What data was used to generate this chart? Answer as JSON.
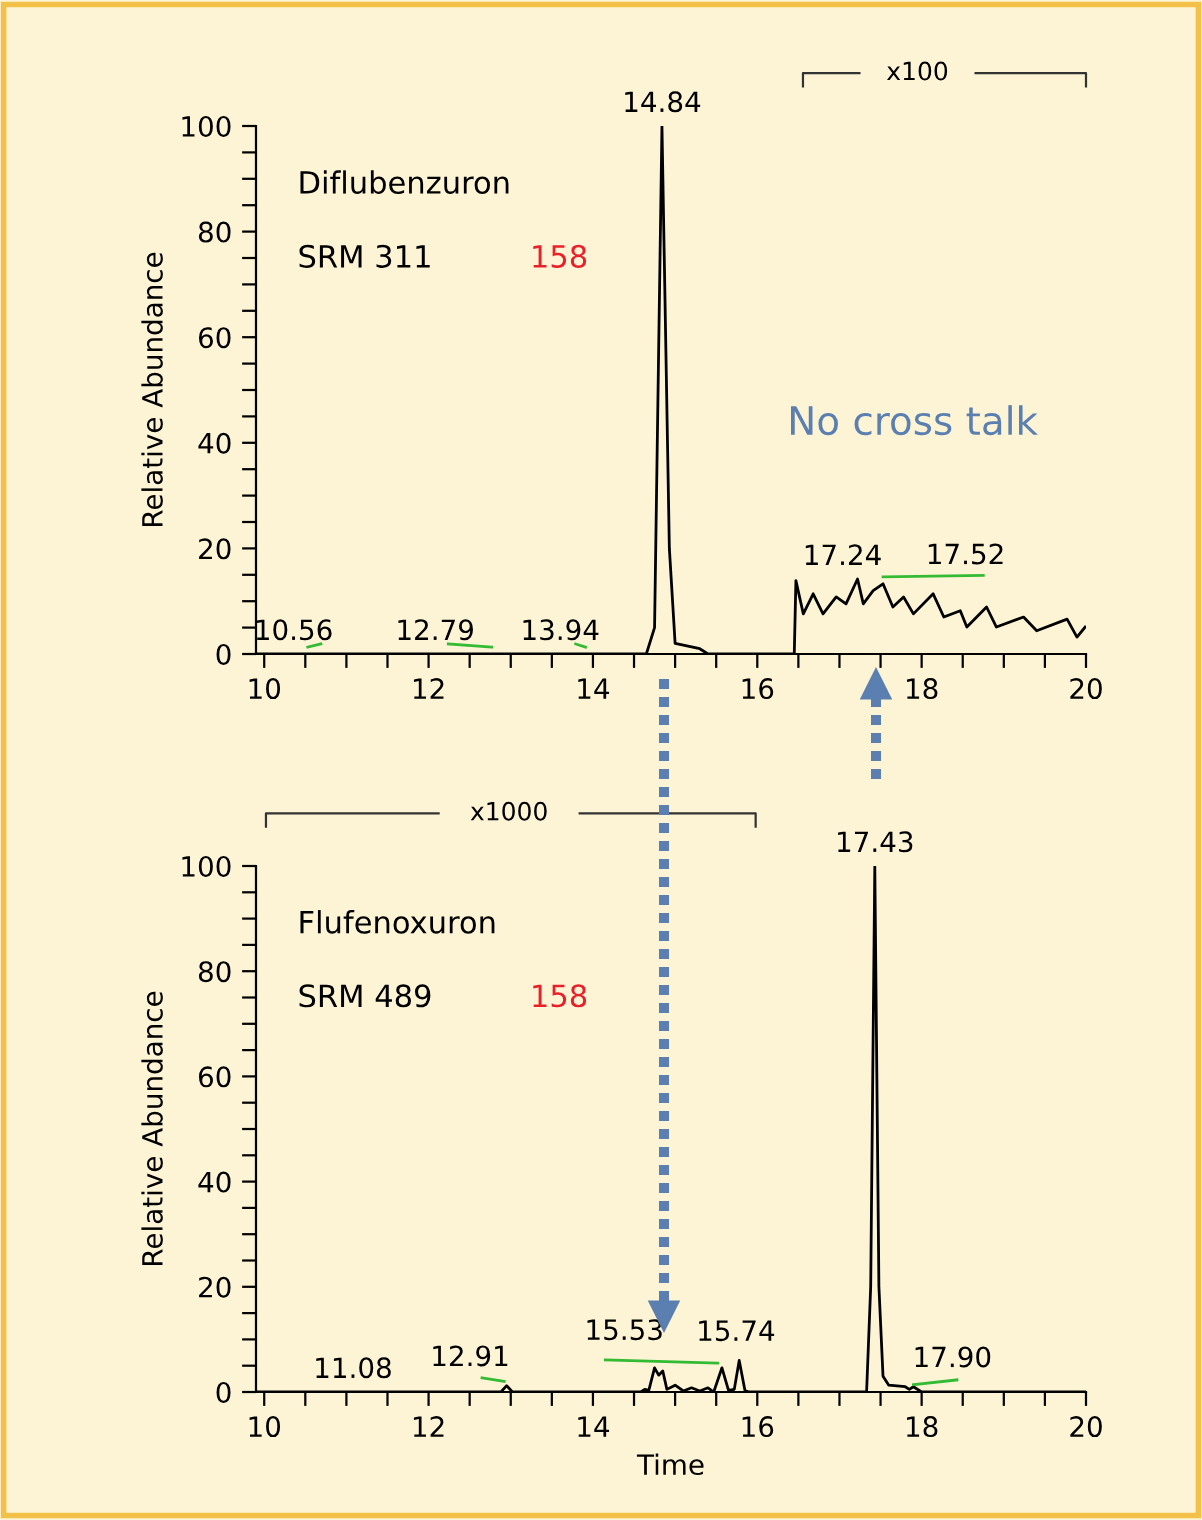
{
  "chart_data": [
    {
      "type": "line",
      "xlabel": null,
      "ylabel": "Relative Abundance",
      "xlim": [
        9.9,
        20
      ],
      "ylim": [
        0,
        100
      ],
      "xticks": [
        10,
        {
          "value": 10.5,
          "label": null
        },
        {
          "value": 11,
          "label": null
        },
        {
          "value": 11.5,
          "label": null
        },
        12,
        {
          "value": 12.5,
          "label": null
        },
        {
          "value": 13,
          "label": null
        },
        {
          "value": 13.5,
          "label": null
        },
        14,
        {
          "value": 14.5,
          "label": null
        },
        {
          "value": 15,
          "label": null
        },
        {
          "value": 15.5,
          "label": null
        },
        16,
        {
          "value": 16.5,
          "label": null
        },
        {
          "value": 17,
          "label": null
        },
        {
          "value": 17.5,
          "label": null
        },
        18,
        {
          "value": 18.5,
          "label": null
        },
        {
          "value": 19,
          "label": null
        },
        {
          "value": 19.5,
          "label": null
        },
        20
      ],
      "yticks": [
        0,
        {
          "value": 5,
          "label": null
        },
        {
          "value": 10,
          "label": null
        },
        {
          "value": 15,
          "label": null
        },
        20,
        {
          "value": 25,
          "label": null
        },
        {
          "value": 30,
          "label": null
        },
        {
          "value": 35,
          "label": null
        },
        40,
        {
          "value": 45,
          "label": null
        },
        {
          "value": 50,
          "label": null
        },
        {
          "value": 55,
          "label": null
        },
        60,
        {
          "value": 65,
          "label": null
        },
        {
          "value": 70,
          "label": null
        },
        {
          "value": 75,
          "label": null
        },
        80,
        {
          "value": 85,
          "label": null
        },
        {
          "value": 90,
          "label": null
        },
        {
          "value": 95,
          "label": null
        },
        100
      ],
      "series": [
        {
          "color": "#000000",
          "x": [
            9.9,
            14.65,
            14.75,
            14.84,
            14.93,
            15.0,
            15.3,
            15.4,
            16.45,
            16.47,
            16.56,
            16.68,
            16.8,
            16.96,
            17.08,
            17.22,
            17.29,
            17.41,
            17.53,
            17.65,
            17.78,
            17.9,
            18.14,
            18.27,
            18.47,
            18.55,
            18.79,
            18.91,
            19.24,
            19.4,
            19.77,
            19.89,
            19.99
          ],
          "values": [
            0,
            0,
            5,
            100,
            20,
            2,
            1,
            0,
            0,
            13.9,
            7.6,
            11.4,
            7.6,
            10.8,
            9.5,
            14.2,
            9.5,
            12,
            13.3,
            8.9,
            10.8,
            7.6,
            11.4,
            7,
            8.2,
            5.1,
            8.9,
            5.1,
            7,
            4.4,
            6.6,
            3.2,
            5.1
          ]
        },
        {
          "color": "#33bb33",
          "x": [
            10.53,
            10.69,
            10.7,
            12.24,
            12.77,
            12.78,
            13.79,
            13.91,
            13.92,
            17.53,
            18.75
          ],
          "values": [
            1.3,
            1.9,
            null,
            1.9,
            1.3,
            null,
            1.9,
            1.3,
            null,
            14.6,
            14.9
          ]
        }
      ],
      "annotations": [
        "Diflubenzuron",
        "SRM 311",
        "158",
        "No cross talk",
        "x100",
        {
          "text": "14.84",
          "x": 14.84,
          "y": 100
        },
        {
          "text": "10.56",
          "x": 10.56,
          "y": 0
        },
        {
          "text": "12.79",
          "x": 12.79,
          "y": 0
        },
        {
          "text": "13.94",
          "x": 13.94,
          "y": 0
        },
        {
          "text": "17.24",
          "x": 17.24,
          "y": 14.2
        },
        {
          "text": "17.52",
          "x": 17.52,
          "y": 13.3
        }
      ],
      "grid": false,
      "legend": false,
      "marker": "none",
      "line_style": "solid"
    },
    {
      "type": "line",
      "xlabel": "Time",
      "ylabel": "Relative Abundance",
      "xlim": [
        9.9,
        20
      ],
      "ylim": [
        0,
        100
      ],
      "xticks": [
        10,
        {
          "value": 10.5,
          "label": null
        },
        {
          "value": 11,
          "label": null
        },
        {
          "value": 11.5,
          "label": null
        },
        12,
        {
          "value": 12.5,
          "label": null
        },
        {
          "value": 13,
          "label": null
        },
        {
          "value": 13.5,
          "label": null
        },
        14,
        {
          "value": 14.5,
          "label": null
        },
        {
          "value": 15,
          "label": null
        },
        {
          "value": 15.5,
          "label": null
        },
        16,
        {
          "value": 16.5,
          "label": null
        },
        {
          "value": 17,
          "label": null
        },
        {
          "value": 17.5,
          "label": null
        },
        18,
        {
          "value": 18.5,
          "label": null
        },
        {
          "value": 19,
          "label": null
        },
        {
          "value": 19.5,
          "label": null
        },
        20
      ],
      "yticks": [
        0,
        {
          "value": 5,
          "label": null
        },
        {
          "value": 10,
          "label": null
        },
        {
          "value": 15,
          "label": null
        },
        20,
        {
          "value": 25,
          "label": null
        },
        {
          "value": 30,
          "label": null
        },
        {
          "value": 35,
          "label": null
        },
        40,
        {
          "value": 45,
          "label": null
        },
        {
          "value": 50,
          "label": null
        },
        {
          "value": 55,
          "label": null
        },
        60,
        {
          "value": 65,
          "label": null
        },
        {
          "value": 70,
          "label": null
        },
        {
          "value": 75,
          "label": null
        },
        80,
        {
          "value": 85,
          "label": null
        },
        {
          "value": 90,
          "label": null
        },
        {
          "value": 95,
          "label": null
        },
        100
      ],
      "series": [
        {
          "color": "#000000",
          "x": [
            9.9,
            12.88,
            12.95,
            13.02,
            14.58,
            14.63,
            14.68,
            14.75,
            14.8,
            14.85,
            14.9,
            15.0,
            15.1,
            15.2,
            15.3,
            15.4,
            15.47,
            15.57,
            15.65,
            15.72,
            15.78,
            15.85,
            15.9,
            17.33,
            17.38,
            17.43,
            17.48,
            17.53,
            17.6,
            17.8,
            17.85,
            17.9,
            18.0,
            20
          ],
          "values": [
            0,
            0,
            1.2,
            0,
            0,
            0.5,
            0.3,
            4.6,
            3.2,
            4,
            0.5,
            1.3,
            0.2,
            0.8,
            0.2,
            0.8,
            0,
            4.6,
            0.3,
            0.5,
            6,
            0.3,
            0,
            0,
            20,
            100,
            20,
            3,
            1.3,
            1,
            0.5,
            1,
            0,
            0
          ]
        },
        {
          "color": "#33bb33",
          "x": [
            12.65,
            12.92,
            12.93,
            14.15,
            15.52,
            15.53,
            17.9,
            18.43
          ],
          "values": [
            2.7,
            2.0,
            null,
            6.1,
            5.5,
            null,
            1.4,
            2.3
          ]
        }
      ],
      "annotations": [
        "Flufenoxuron",
        "SRM 489",
        "158",
        "x1000",
        {
          "text": "17.43",
          "x": 17.43,
          "y": 100
        },
        {
          "text": "11.08",
          "x": 11.08,
          "y": 0
        },
        {
          "text": "12.91",
          "x": 12.91,
          "y": 1.2
        },
        {
          "text": "15.53",
          "x": 15.53,
          "y": 4.6
        },
        {
          "text": "15.74",
          "x": 15.74,
          "y": 6
        },
        {
          "text": "17.90",
          "x": 17.9,
          "y": 1
        }
      ],
      "grid": false,
      "legend": false,
      "marker": "none",
      "line_style": "solid"
    }
  ]
}
